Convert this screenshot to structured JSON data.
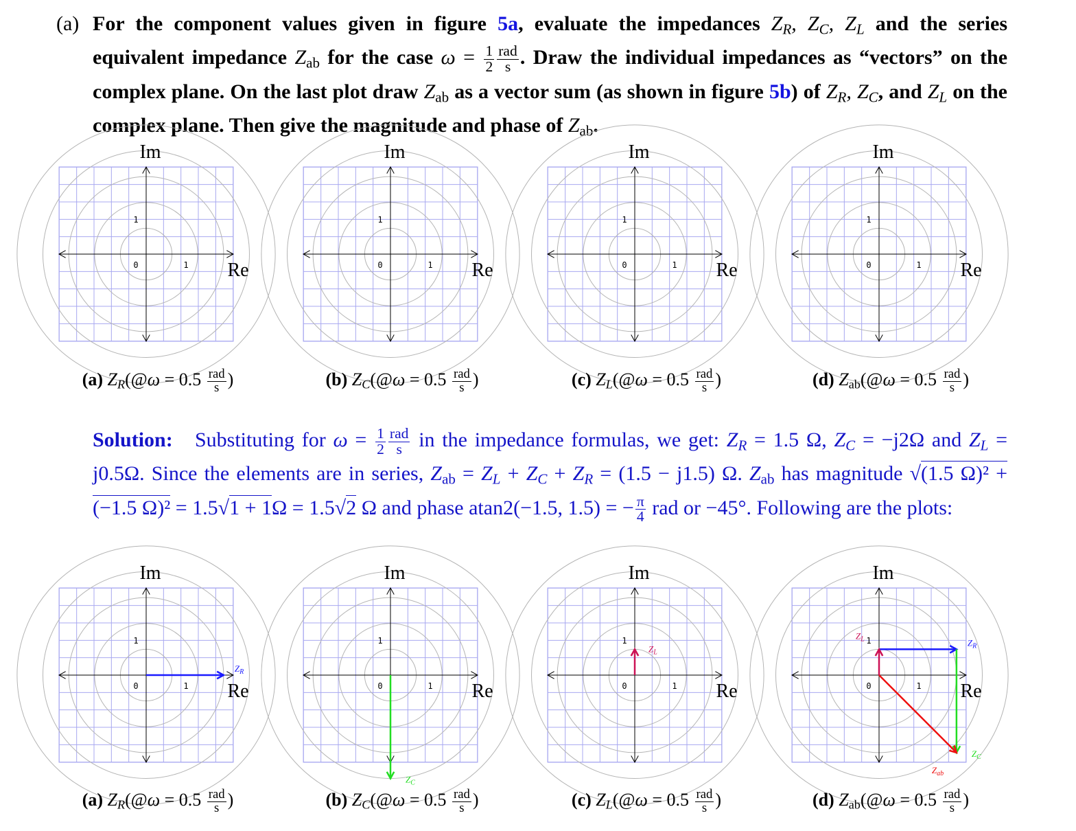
{
  "question": {
    "label": "(a)",
    "t1": "For the component values given in figure ",
    "ref1": "5a",
    "t2": ", evaluate the impedances ",
    "t3": " and the series equivalent impedance ",
    "t4": " for the case ",
    "t5": ". Draw the individual impedances as “vectors” on the complex plane. On the last plot draw ",
    "t6": " as a vector sum (as shown in figure ",
    "ref2": "5b",
    "t7": ") of ",
    "t8": ", and ",
    "t9": " on the complex plane. Then give the magnitude and phase of ",
    "t10": "."
  },
  "solution": {
    "title": "Solution:",
    "s1": "Substituting for",
    "s2": "in the impedance formulas, we get:",
    "zr_val": "= 1.5 Ω,",
    "zc_val": "= −j2Ω",
    "s3": "and",
    "zl_val": "= j0.5Ω.",
    "s4": "Since the elements are in series,",
    "sum_expr": "= Z_L + Z_C + Z_R = (1.5 − j1.5) Ω.",
    "s5": "has magnitude",
    "mag_expr": "(1.5 Ω)² + (−1.5 Ω)²",
    "mag_mid": "= 1.5",
    "mag_root": "1 + 1",
    "mag_end": "Ω = 1.5",
    "mag_root2": "2",
    "s6": "Ω and phase atan2(−1.5, 1.5) =",
    "s7": "rad or −45°. Following are the plots:"
  },
  "axes": {
    "im": "Im",
    "re": "Re",
    "tick0": "0",
    "tick1": "1"
  },
  "plots_top": [
    {
      "letter": "(a)",
      "caption": "Z_R(@ω = 0.5 rad/s)"
    },
    {
      "letter": "(b)",
      "caption": "Z_C(@ω = 0.5 rad/s)"
    },
    {
      "letter": "(c)",
      "caption": "Z_L(@ω = 0.5 rad/s)"
    },
    {
      "letter": "(d)",
      "caption": "Z_ab(@ω = 0.5 rad/s)"
    }
  ],
  "plots_bottom": [
    {
      "letter": "(a)",
      "vectors": [
        {
          "label": "ZR",
          "from": [
            0,
            0
          ],
          "to": [
            1.5,
            0
          ],
          "color": "#1a1aff"
        }
      ]
    },
    {
      "letter": "(b)",
      "vectors": [
        {
          "label": "ZC",
          "from": [
            0,
            0
          ],
          "to": [
            0,
            -2
          ],
          "color": "#22dd22"
        }
      ]
    },
    {
      "letter": "(c)",
      "vectors": [
        {
          "label": "ZL",
          "from": [
            0,
            0
          ],
          "to": [
            0,
            0.5
          ],
          "color": "#cc1155"
        }
      ]
    },
    {
      "letter": "(d)",
      "vectors": [
        {
          "label": "ZR",
          "from": [
            0,
            0.5
          ],
          "to": [
            1.5,
            0.5
          ],
          "color": "#1a1aff"
        },
        {
          "label": "ZL",
          "from": [
            0,
            0
          ],
          "to": [
            0,
            0.5
          ],
          "color": "#cc1155"
        },
        {
          "label": "ZC",
          "from": [
            1.5,
            0.5
          ],
          "to": [
            1.5,
            -1.5
          ],
          "color": "#22dd22"
        },
        {
          "label": "Zab",
          "from": [
            0,
            0
          ],
          "to": [
            1.5,
            -1.5
          ],
          "color": "#ee1111"
        }
      ]
    }
  ],
  "colors": {
    "grid": "#a8a8f0",
    "circle": "#b4b4b4",
    "link": "#1414e0",
    "solution": "#1414c8"
  }
}
